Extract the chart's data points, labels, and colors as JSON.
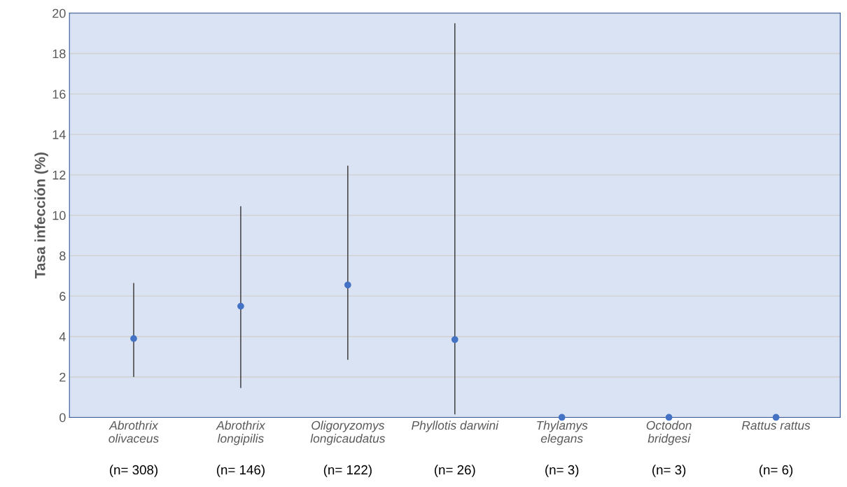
{
  "chart_data": {
    "type": "scatter",
    "ylabel": "Tasa infección (%)",
    "categories": [
      "Abrothrix\nolivaceus",
      "Abrothrix\nlongipilis",
      "Oligoryzomys\nlongicaudatus",
      "Phyllotis darwini",
      "Thylamys\nelegans",
      "Octodon\nbridgesi",
      "Rattus rattus"
    ],
    "values": [
      3.9,
      5.5,
      6.55,
      3.85,
      0,
      0,
      0
    ],
    "errors": [
      [
        2.0,
        6.65
      ],
      [
        1.45,
        10.45
      ],
      [
        2.85,
        12.45
      ],
      [
        0.15,
        19.5
      ],
      null,
      null,
      null
    ],
    "color": "#4472c4",
    "marker": "circle",
    "ylim": [
      0,
      20
    ],
    "yticks": [
      0,
      2,
      4,
      6,
      8,
      10,
      12,
      14,
      16,
      18,
      20
    ],
    "grid": "y",
    "annotations": [
      "(n= 308)",
      "(n= 146)",
      "(n= 122)",
      "(n= 26)",
      "(n= 3)",
      "(n= 3)",
      "(n= 6)"
    ]
  }
}
